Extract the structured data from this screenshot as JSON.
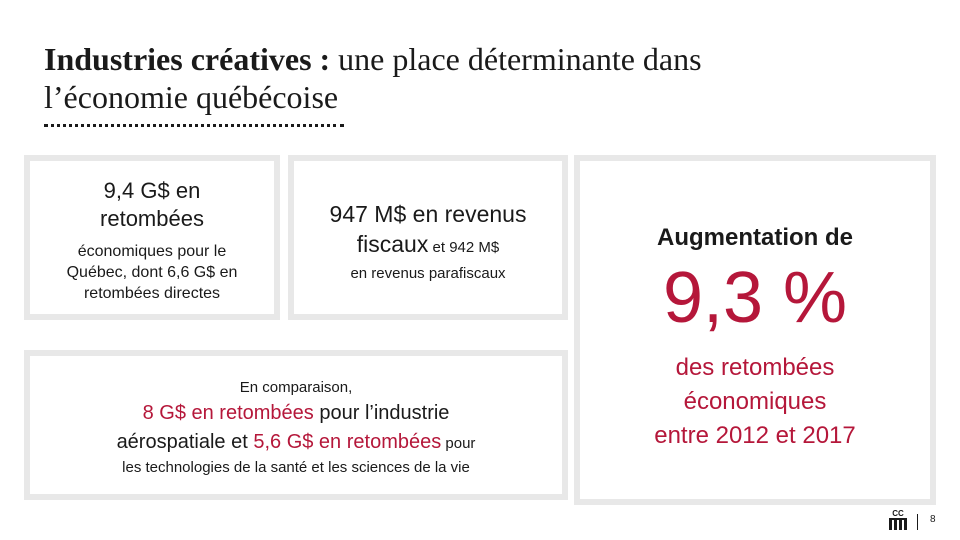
{
  "title": {
    "bold": "Industries créatives :",
    "rest_line1": " une place déterminante dans",
    "rest_line2": "l’économie québécoise"
  },
  "card1": {
    "big_line1": "9,4 G$ en",
    "big_line2": "retombées",
    "small_line1": "économiques pour le",
    "small_line2": "Québec, dont 6,6 G$ en",
    "small_line3": "retombées directes"
  },
  "card2": {
    "big_line1": "947 M$ en revenus",
    "big_line2": "fiscaux",
    "big_line2_small": " et 942 M$",
    "small_line": "en revenus parafiscaux"
  },
  "card3": {
    "intro": "En comparaison,",
    "red1": "8 G$ en retombées",
    "plain1": " pour l’industrie",
    "plain2": "aérospatiale et ",
    "red2": "5,6 G$ en retombées",
    "tail": " pour",
    "last": "les technologies de la santé et les sciences de la vie"
  },
  "card4": {
    "heading": "Augmentation de",
    "percent": "9,3 %",
    "desc_line1": "des retombées",
    "desc_line2": "économiques",
    "desc_line3": "entre 2012 et 2017"
  },
  "footer": {
    "logo_icon": "cc-logo-icon",
    "logo_text": "CC",
    "page_number": "8"
  },
  "colors": {
    "accent": "#b5173a",
    "card_border": "#e8e8e8",
    "text": "#1a1a1a"
  }
}
